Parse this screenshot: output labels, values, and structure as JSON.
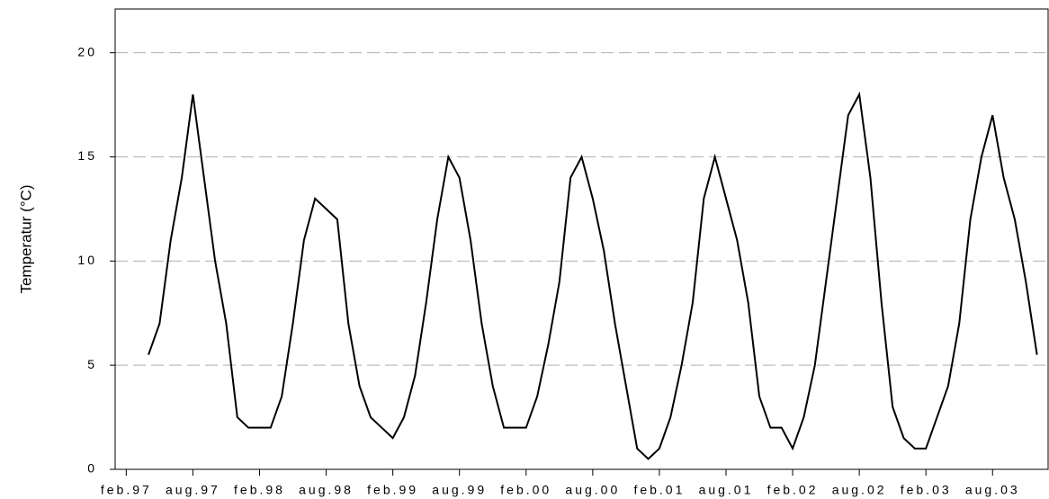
{
  "chart_data": {
    "type": "line",
    "y_label": "Temperatur (°C)",
    "x": [
      "1997-04",
      "1997-05",
      "1997-06",
      "1997-07",
      "1997-08",
      "1997-09",
      "1997-10",
      "1997-11",
      "1997-12",
      "1998-01",
      "1998-02",
      "1998-03",
      "1998-04",
      "1998-05",
      "1998-06",
      "1998-07",
      "1998-08",
      "1998-09",
      "1998-10",
      "1998-11",
      "1998-12",
      "1999-01",
      "1999-02",
      "1999-03",
      "1999-04",
      "1999-05",
      "1999-06",
      "1999-07",
      "1999-08",
      "1999-09",
      "1999-10",
      "1999-11",
      "1999-12",
      "2000-01",
      "2000-02",
      "2000-03",
      "2000-04",
      "2000-05",
      "2000-06",
      "2000-07",
      "2000-08",
      "2000-09",
      "2000-10",
      "2000-11",
      "2000-12",
      "2001-01",
      "2001-02",
      "2001-03",
      "2001-04",
      "2001-05",
      "2001-06",
      "2001-07",
      "2001-08",
      "2001-09",
      "2001-10",
      "2001-11",
      "2001-12",
      "2002-01",
      "2002-02",
      "2002-03",
      "2002-04",
      "2002-05",
      "2002-06",
      "2002-07",
      "2002-08",
      "2002-09",
      "2002-10",
      "2002-11",
      "2002-12",
      "2003-01",
      "2003-02",
      "2003-03",
      "2003-04",
      "2003-05",
      "2003-06",
      "2003-07",
      "2003-08",
      "2003-09",
      "2003-10",
      "2003-11",
      "2003-12"
    ],
    "series": [
      {
        "name": "Temperatur",
        "color": "#000000",
        "values": [
          5.5,
          7,
          11,
          14,
          18,
          14,
          10,
          7,
          2.5,
          2,
          2,
          2,
          3.5,
          7,
          11,
          13,
          12.5,
          12,
          7,
          4,
          2.5,
          2,
          1.5,
          2.5,
          4.5,
          8,
          12,
          15,
          14,
          11,
          7,
          4,
          2,
          2,
          2,
          3.5,
          6,
          9,
          14,
          15,
          13,
          10.5,
          7,
          4,
          1,
          0.5,
          1,
          2.5,
          5,
          8,
          13,
          15,
          13,
          11,
          8,
          3.5,
          2,
          2,
          1,
          2.5,
          5,
          9,
          13,
          17,
          18,
          14,
          8,
          3,
          1.5,
          1,
          1,
          2.5,
          4,
          7,
          12,
          15,
          17,
          14,
          12,
          9,
          5.5
        ]
      }
    ],
    "xlim": [
      "1997-01",
      "2004-01"
    ],
    "xticks": [
      {
        "value": "1997-02",
        "label": "feb.97"
      },
      {
        "value": "1997-08",
        "label": "aug.97"
      },
      {
        "value": "1998-02",
        "label": "feb.98"
      },
      {
        "value": "1998-08",
        "label": "aug.98"
      },
      {
        "value": "1999-02",
        "label": "feb.99"
      },
      {
        "value": "1999-08",
        "label": "aug.99"
      },
      {
        "value": "2000-02",
        "label": "feb.00"
      },
      {
        "value": "2000-08",
        "label": "aug.00"
      },
      {
        "value": "2001-02",
        "label": "feb.01"
      },
      {
        "value": "2001-08",
        "label": "aug.01"
      },
      {
        "value": "2002-02",
        "label": "feb.02"
      },
      {
        "value": "2002-08",
        "label": "aug.02"
      },
      {
        "value": "2003-02",
        "label": "feb.03"
      },
      {
        "value": "2003-08",
        "label": "aug.03"
      }
    ],
    "ylim": [
      0,
      22.1
    ],
    "yticks": [
      0,
      5,
      10,
      15,
      20
    ],
    "grid": true
  }
}
